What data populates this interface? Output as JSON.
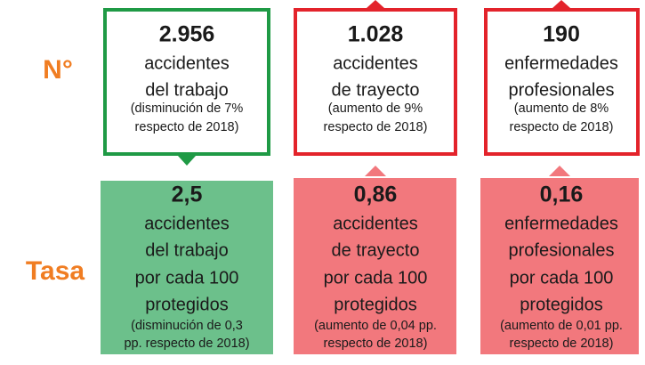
{
  "rows": [
    {
      "label": "N°",
      "cards": [
        {
          "number": "2.956",
          "lines": [
            "accidentes",
            "del trabajo"
          ],
          "note": [
            "(disminución de 7%",
            "respecto de 2018)"
          ]
        },
        {
          "number": "1.028",
          "lines": [
            "accidentes",
            "de trayecto"
          ],
          "note": [
            "(aumento de 9%",
            "respecto de 2018)"
          ]
        },
        {
          "number": "190",
          "lines": [
            "enfermedades",
            "profesionales"
          ],
          "note": [
            "(aumento de 8%",
            "respecto de 2018)"
          ]
        }
      ]
    },
    {
      "label": "Tasa",
      "cards": [
        {
          "number": "2,5",
          "lines": [
            "accidentes",
            "del trabajo",
            "por cada 100",
            "protegidos"
          ],
          "note": [
            "(disminución de 0,3",
            "pp. respecto de 2018)"
          ]
        },
        {
          "number": "0,86",
          "lines": [
            "accidentes",
            "de trayecto",
            "por cada 100",
            "protegidos"
          ],
          "note": [
            "(aumento de 0,04 pp.",
            "respecto de 2018)"
          ]
        },
        {
          "number": "0,16",
          "lines": [
            "enfermedades",
            "profesionales",
            "por cada 100",
            "protegidos"
          ],
          "note": [
            "(aumento de 0,01 pp.",
            "respecto de 2018)"
          ]
        }
      ]
    }
  ]
}
